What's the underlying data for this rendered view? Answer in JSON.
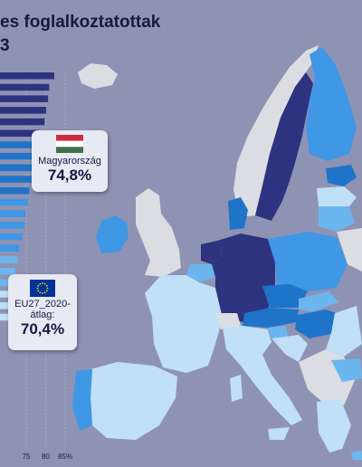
{
  "chart_data": {
    "type": "bar",
    "title_line_1": "es foglalkoztatottak",
    "title_line_2": "3",
    "x_ticks": [
      "75",
      "80",
      "85%"
    ],
    "xlim": [
      68.2,
      85
    ],
    "values": [
      82.2,
      80.9,
      80.6,
      80.1,
      79.7,
      78.3,
      77.9,
      77.4,
      76.9,
      76.3,
      75.8,
      75.4,
      74.8,
      74.5,
      73.9,
      73.2,
      72.7,
      72.2,
      71.8,
      71.3,
      70.9,
      70.7
    ],
    "colors": {
      "top": "#2e3380",
      "high": "#1e74c9",
      "mid": "#3f97e6",
      "low": "#6cb6ef",
      "lowest": "#bfe0f7",
      "hungary": "#1e74c9",
      "non_eu": "#dcdde2",
      "background": "#8f93b3"
    },
    "callouts": [
      {
        "label": "Magyarország",
        "value_text": "74,8%",
        "icon": "hungary-flag-icon"
      },
      {
        "label_line_1": "EU27_2020-",
        "label_line_2": "átlag:",
        "value_text": "70,4%",
        "icon": "eu-flag-icon"
      }
    ]
  }
}
